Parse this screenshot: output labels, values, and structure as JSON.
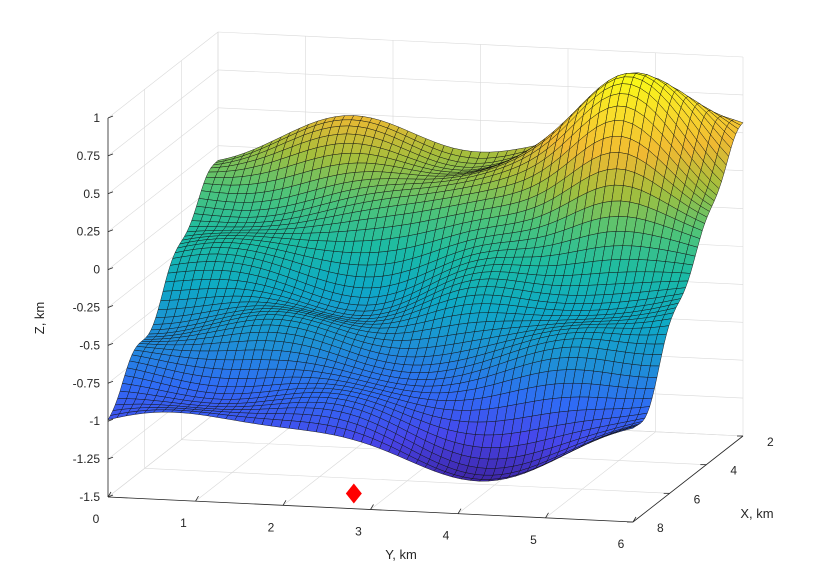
{
  "chart_data": {
    "type": "surface",
    "title": "",
    "xlabel": "X, km",
    "ylabel": "Y, km",
    "zlabel": "Z, km",
    "xlim": [
      2,
      8
    ],
    "ylim": [
      0,
      6
    ],
    "zlim": [
      -1.5,
      1
    ],
    "x_ticks": [
      "2",
      "4",
      "6",
      "8"
    ],
    "y_ticks": [
      "0",
      "1",
      "2",
      "3",
      "4",
      "5",
      "6"
    ],
    "z_ticks": [
      "-1.5",
      "-1.25",
      "-1",
      "-0.75",
      "-0.5",
      "-0.25",
      "0",
      "0.25",
      "0.5",
      "0.75",
      "1"
    ],
    "grid": true,
    "colormap": [
      "#3e26a8",
      "#4746eb",
      "#2f6cf5",
      "#1e90d6",
      "#0ea9c6",
      "#1bbba4",
      "#4fc478",
      "#a5be3c",
      "#f0b932",
      "#f9dd2a",
      "#f9fb15"
    ],
    "surface_features": {
      "surface_z_min": -1.28,
      "surface_z_max": 0.95,
      "peak": {
        "x": 3.2,
        "y": 4.9,
        "z": 0.95
      },
      "trough": {
        "x": 7.6,
        "y": 4.4,
        "z": -1.28
      }
    },
    "marker": {
      "x": 7.0,
      "y": 2.6,
      "z": -1.5,
      "color": "#ff0000",
      "shape": "diamond"
    }
  }
}
